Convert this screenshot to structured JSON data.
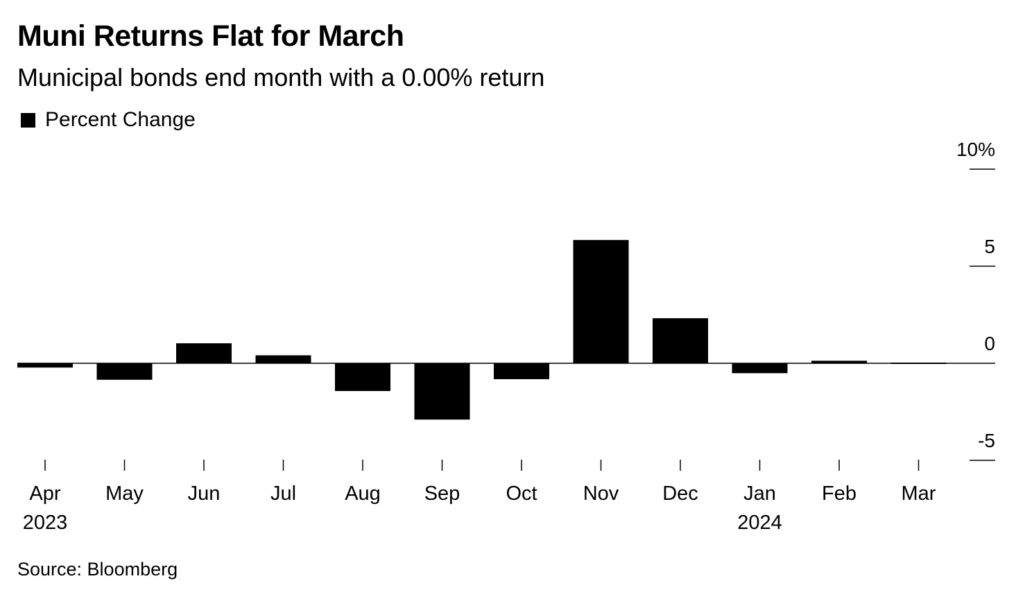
{
  "title": "Muni Returns Flat for March",
  "subtitle": "Municipal bonds end month with a 0.00% return",
  "source": "Source: Bloomberg",
  "legend": {
    "label": "Percent Change",
    "color": "#000000"
  },
  "chart_data": {
    "type": "bar",
    "categories": [
      "Apr",
      "May",
      "Jun",
      "Jul",
      "Aug",
      "Sep",
      "Oct",
      "Nov",
      "Dec",
      "Jan",
      "Feb",
      "Mar"
    ],
    "year_labels": [
      {
        "category_index": 0,
        "label": "2023"
      },
      {
        "category_index": 9,
        "label": "2024"
      }
    ],
    "series": [
      {
        "name": "Percent Change",
        "color": "#000000",
        "values": [
          -0.22,
          -0.85,
          1.03,
          0.41,
          -1.43,
          -2.9,
          -0.82,
          6.35,
          2.32,
          -0.51,
          0.13,
          0.0
        ]
      }
    ],
    "ylim": [
      -5,
      10
    ],
    "yticks": [
      {
        "value": 10,
        "label": "10%"
      },
      {
        "value": 5,
        "label": "5"
      },
      {
        "value": 0,
        "label": "0"
      },
      {
        "value": -5,
        "label": "-5"
      }
    ],
    "xlabel": "",
    "ylabel": "",
    "grid": false,
    "legend_position": "top-left"
  }
}
